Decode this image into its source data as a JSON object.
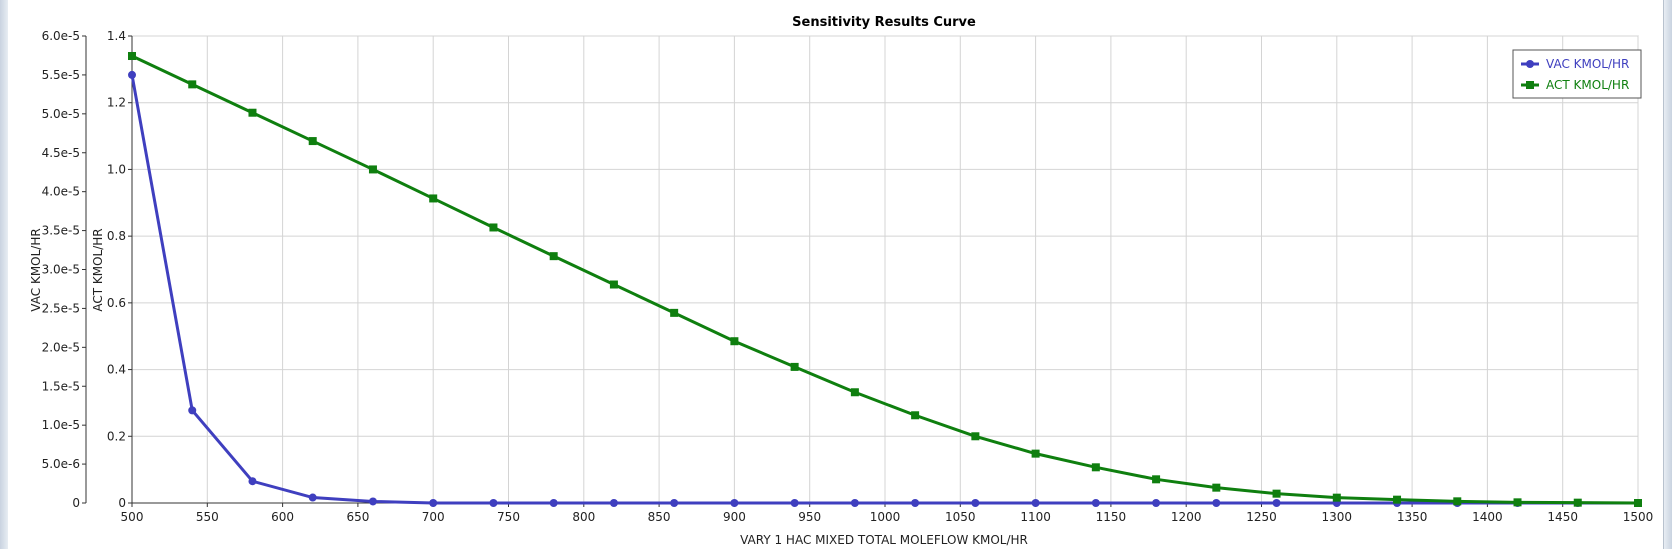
{
  "chart_data": {
    "type": "line",
    "title": "Sensitivity Results Curve",
    "xlabel": "VARY   1 HAC MIXED TOTAL MOLEFLOW KMOL/HR",
    "xlim": [
      500,
      1500
    ],
    "x_ticks": [
      "500",
      "550",
      "600",
      "650",
      "700",
      "750",
      "800",
      "850",
      "900",
      "950",
      "1000",
      "1050",
      "1100",
      "1150",
      "1200",
      "1250",
      "1300",
      "1350",
      "1400",
      "1450",
      "1500"
    ],
    "y_axes": [
      {
        "label": "VAC KMOL/HR",
        "ylim": [
          0,
          6e-05
        ],
        "ticks": [
          "0",
          "5.0e-6",
          "1.0e-5",
          "1.5e-5",
          "2.0e-5",
          "2.5e-5",
          "3.0e-5",
          "3.5e-5",
          "4.0e-5",
          "4.5e-5",
          "5.0e-5",
          "5.5e-5",
          "6.0e-5"
        ]
      },
      {
        "label": "ACT KMOL/HR",
        "ylim": [
          0,
          1.4
        ],
        "ticks": [
          "0",
          "0.2",
          "0.4",
          "0.6",
          "0.8",
          "1.0",
          "1.2",
          "1.4"
        ]
      }
    ],
    "x": [
      500,
      540,
      580,
      620,
      660,
      700,
      740,
      780,
      820,
      860,
      900,
      940,
      980,
      1020,
      1060,
      1100,
      1140,
      1180,
      1220,
      1260,
      1300,
      1340,
      1380,
      1420,
      1460,
      1500
    ],
    "series": [
      {
        "name": "VAC KMOL/HR",
        "axis": 0,
        "color": "#3f3fbf",
        "marker": "circle",
        "values": [
          5.5e-05,
          1.19e-05,
          2.8e-06,
          7e-07,
          2e-07,
          0,
          0,
          0,
          0,
          0,
          0,
          0,
          0,
          0,
          0,
          0,
          0,
          0,
          0,
          0,
          0,
          0,
          0,
          0,
          0,
          0
        ]
      },
      {
        "name": "ACT KMOL/HR",
        "axis": 1,
        "color": "#0f7f0f",
        "marker": "square",
        "values": [
          1.34,
          1.255,
          1.17,
          1.085,
          1.0,
          0.913,
          0.826,
          0.74,
          0.655,
          0.57,
          0.485,
          0.408,
          0.332,
          0.263,
          0.2,
          0.148,
          0.107,
          0.071,
          0.046,
          0.028,
          0.016,
          0.01,
          0.005,
          0.002,
          0.001,
          0.0
        ]
      }
    ],
    "grid": true,
    "legend": "top-right"
  }
}
